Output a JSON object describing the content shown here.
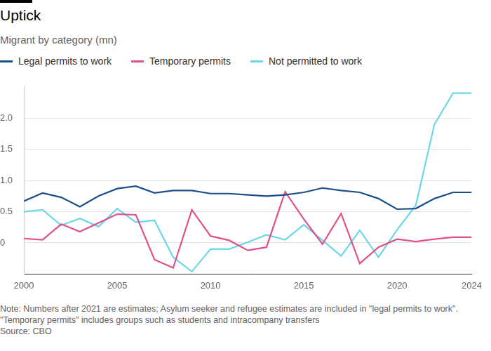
{
  "chart_data": {
    "type": "line",
    "title": "Uptick",
    "subtitle": "Migrant by category (mn)",
    "note": "Note: Numbers after 2021 are estimates; Asylum seeker and refugee estimates are included in \"legal permits to work\". \"Temporary permits\" includes groups such as students and intracompany transfers",
    "source": "Source: CBO",
    "x": [
      2000,
      2001,
      2002,
      2003,
      2004,
      2005,
      2006,
      2007,
      2008,
      2009,
      2010,
      2011,
      2012,
      2013,
      2014,
      2015,
      2016,
      2017,
      2018,
      2019,
      2020,
      2021,
      2022,
      2023,
      2024
    ],
    "series": [
      {
        "name": "Legal permits to work",
        "color": "#1a4f8b",
        "values": [
          0.67,
          0.8,
          0.73,
          0.58,
          0.75,
          0.87,
          0.91,
          0.8,
          0.84,
          0.84,
          0.79,
          0.79,
          0.77,
          0.75,
          0.77,
          0.81,
          0.88,
          0.84,
          0.81,
          0.71,
          0.54,
          0.55,
          0.71,
          0.81,
          0.81
        ]
      },
      {
        "name": "Temporary permits",
        "color": "#e0508a",
        "values": [
          0.07,
          0.05,
          0.3,
          0.18,
          0.32,
          0.46,
          0.45,
          -0.27,
          -0.4,
          0.53,
          0.11,
          0.04,
          -0.12,
          -0.07,
          0.82,
          0.38,
          -0.02,
          0.47,
          -0.33,
          -0.07,
          0.06,
          0.02,
          0.06,
          0.09,
          0.09
        ]
      },
      {
        "name": "Not permitted to work",
        "color": "#6dd6e8",
        "values": [
          0.5,
          0.53,
          0.28,
          0.39,
          0.26,
          0.55,
          0.33,
          0.36,
          -0.23,
          -0.46,
          -0.1,
          -0.1,
          0.01,
          0.13,
          0.05,
          0.29,
          0.04,
          -0.21,
          0.2,
          -0.23,
          0.21,
          0.6,
          1.9,
          2.4,
          2.4
        ]
      }
    ],
    "xlim": [
      2000,
      2024
    ],
    "xticks": [
      2000,
      2005,
      2010,
      2015,
      2020,
      2024
    ],
    "ylim": [
      -0.5,
      2.5
    ],
    "yticks": [
      0,
      0.5,
      {
        "value": 1,
        "label": "1.0"
      },
      1.5,
      {
        "value": 2,
        "label": "2.0"
      }
    ],
    "grid": true,
    "legend": "top-left"
  }
}
